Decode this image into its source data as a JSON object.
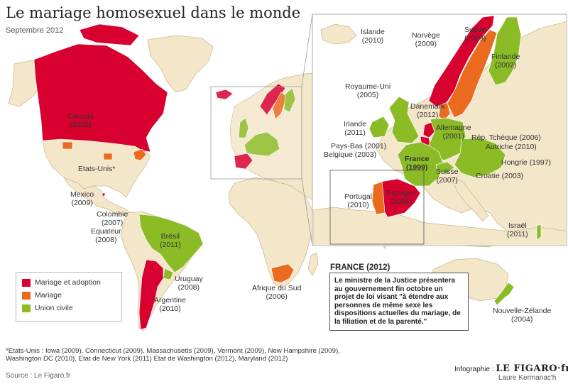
{
  "title": "Le mariage homosexuel dans le monde",
  "subtitle": "Septembre 2012",
  "colors": {
    "mariage_adoption": "#d7002f",
    "mariage": "#ea6a1e",
    "union_civile": "#8bbb25",
    "land": "#f4e6c9",
    "sea": "#ffffff",
    "borders": "#c9b68e"
  },
  "legend": {
    "items": [
      {
        "label": "Mariage et adoption",
        "color": "#d7002f"
      },
      {
        "label": "Mariage",
        "color": "#ea6a1e"
      },
      {
        "label": "Union civile",
        "color": "#8bbb25"
      }
    ]
  },
  "countries": {
    "canada": {
      "name": "Canada",
      "year": "(2005)"
    },
    "etats_unis": {
      "name": "Etats-Unis*"
    },
    "mexico": {
      "name": "Mexico",
      "year": "(2009)"
    },
    "colombie": {
      "name": "Colombie",
      "year": "(2007)"
    },
    "equateur": {
      "name": "Equateur",
      "year": "(2008)"
    },
    "bresil": {
      "name": "Brésil",
      "year": "(2011)"
    },
    "uruguay": {
      "name": "Uruguay",
      "year": "(2008)"
    },
    "argentine": {
      "name": "Argentine",
      "year": "(2010)"
    },
    "afrique_du_sud": {
      "name": "Afrique du Sud",
      "year": "(2006)"
    },
    "nouvelle_zelande": {
      "name": "Nouvelle-Zélande",
      "year": "(2004)"
    },
    "islande": {
      "name": "Islande",
      "year": "(2010)"
    },
    "norvege": {
      "name": "Norvège",
      "year": "(2009)"
    },
    "suede": {
      "name": "Suède",
      "year": "(2009)"
    },
    "finlande": {
      "name": "Finlande",
      "year": "(2002)"
    },
    "royaume_uni": {
      "name": "Royaume-Uni",
      "year": "(2005)"
    },
    "danemark": {
      "name": "Danemark",
      "year": "(2012)"
    },
    "irlande": {
      "name": "Irlande",
      "year": "(2011)"
    },
    "allemagne": {
      "name": "Allemagne",
      "year": "(2001)"
    },
    "pays_bas": {
      "name": "Pays-Bas (2001)"
    },
    "belgique": {
      "name": "Belgique (2003)"
    },
    "rep_tcheque": {
      "name": "Rép. Tchèque (2006)"
    },
    "autriche": {
      "name": "Autriche (2010)"
    },
    "hongrie": {
      "name": "Hongrie (1997)"
    },
    "croatie": {
      "name": "Croatie (2003)"
    },
    "france": {
      "name": "France",
      "year": "(1999)"
    },
    "suisse": {
      "name": "Suisse",
      "year": "(2007)"
    },
    "portugal": {
      "name": "Portugal",
      "year": "(2010)"
    },
    "espagne": {
      "name": "Espagne",
      "year": "(2005)"
    },
    "israel": {
      "name": "Israël",
      "year": "(2011)"
    }
  },
  "france_note": {
    "heading": "FRANCE (2012)",
    "text": "Le ministre de la Justice présentera au gouvernement fin octobre un projet de loi visant \"à étendre aux personnes de même sexe les dispositions actuelles du mariage, de la filiation et de la parenté.\""
  },
  "footnote": "*Etats-Unis : Iowa (2009), Connecticut (2009), Massachusetts (2009), Vermont (2009), New Hampshire (2009), Washington DC (2010), Etat de New York (2011) Etat de Washington (2012), Maryland (2012)",
  "source": "Source : Le Figaro.fr",
  "credit": {
    "prefix": "Infographie :",
    "brand": "LE FIGARO",
    "suffix": "·fr"
  },
  "author": "Laure Kermanac'h"
}
